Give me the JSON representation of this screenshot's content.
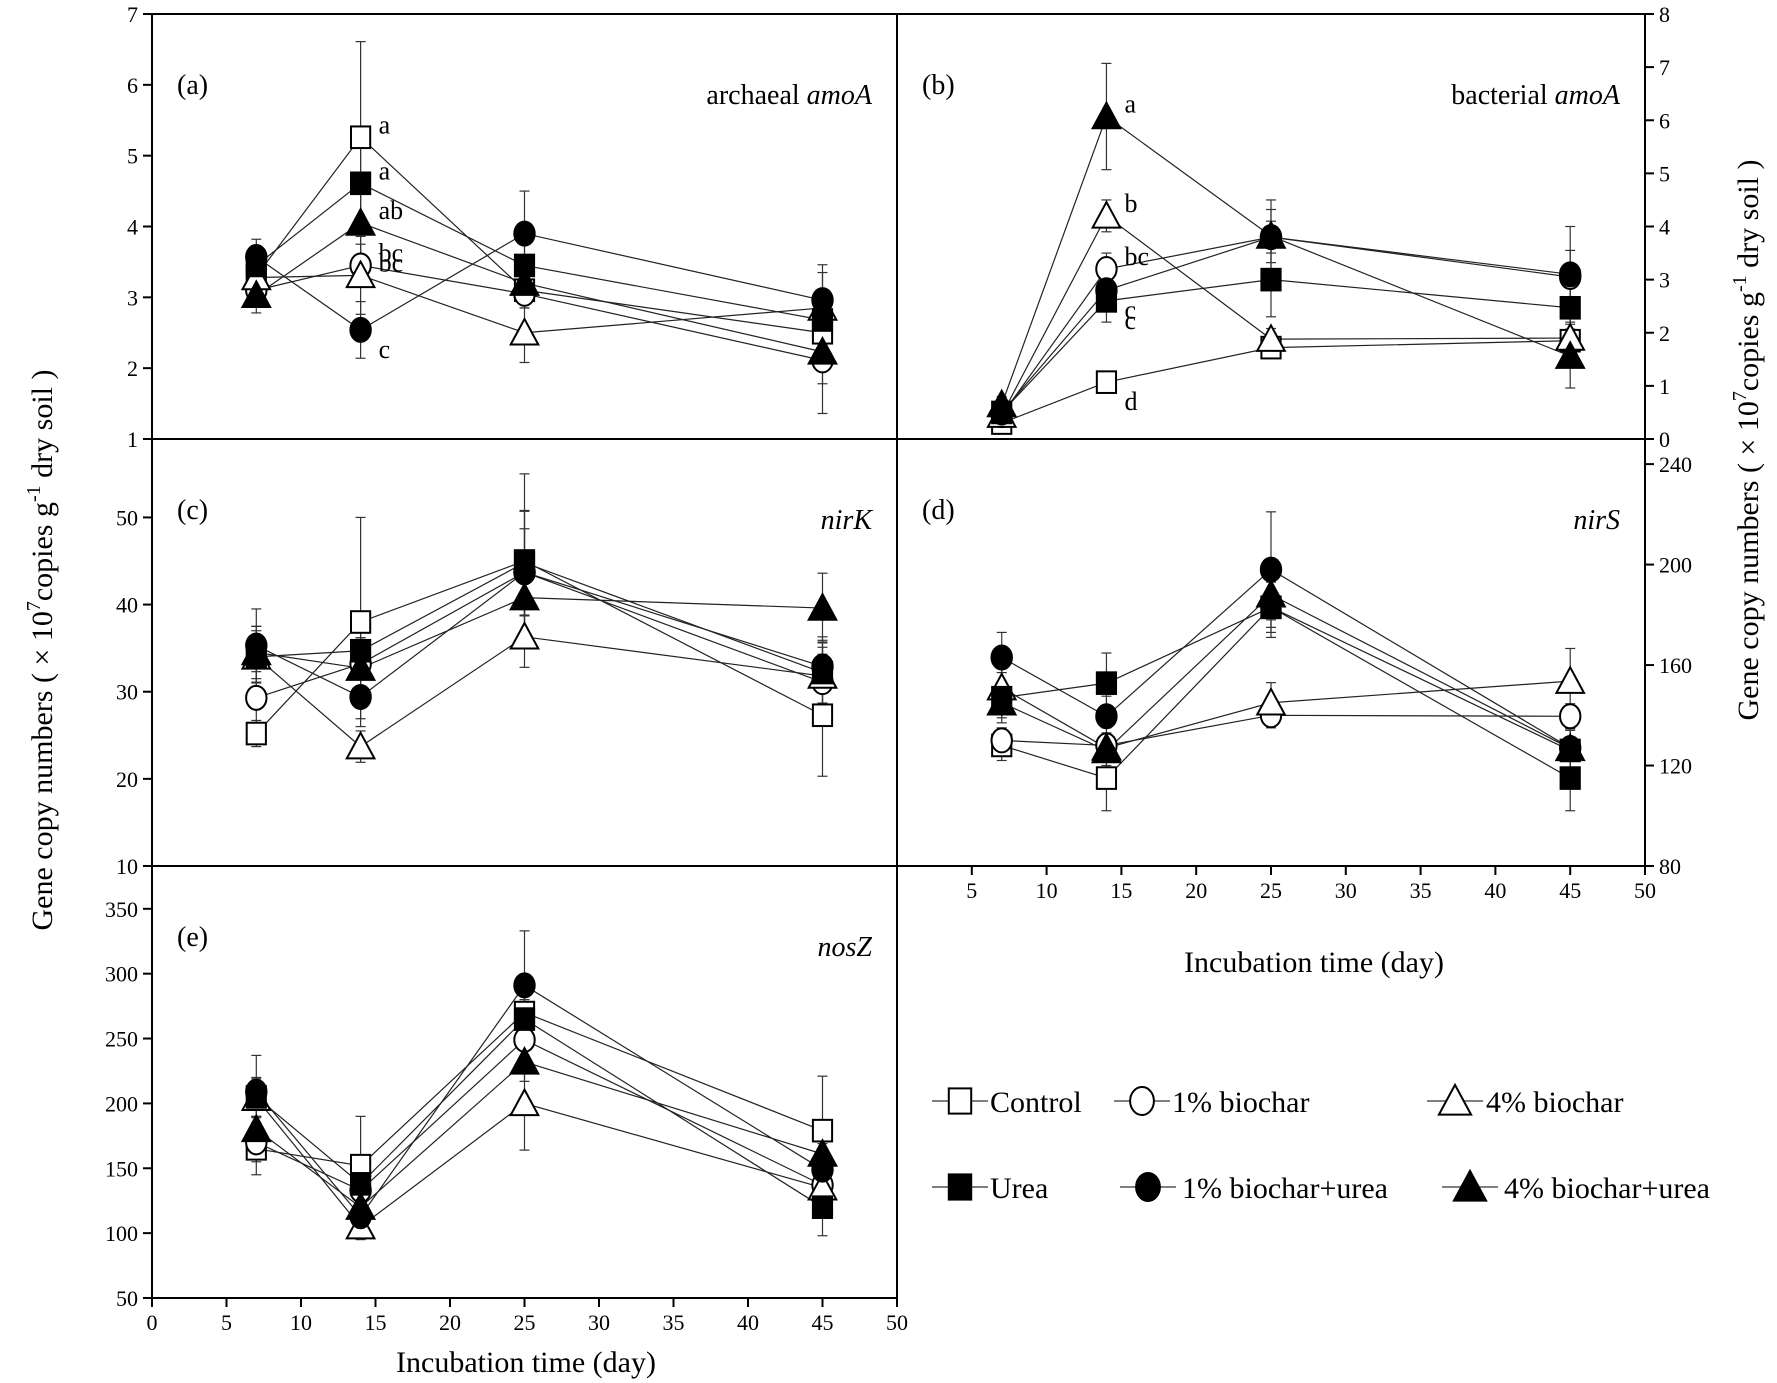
{
  "chart_data": {
    "type": "line",
    "y_axis_title": "Gene copy numbers ( × 10",
    "y_axis_title_sup1": "7",
    "y_axis_title_mid": "copies g",
    "y_axis_title_sup2": "-1",
    "y_axis_title_end": " dry soil )",
    "x_axis_title": "Incubation time (day)",
    "x": [
      7,
      14,
      25,
      45
    ],
    "xlim": [
      0,
      50
    ],
    "x_ticks_left": [
      0,
      5,
      10,
      15,
      20,
      25,
      30,
      35,
      40,
      45,
      50
    ],
    "x_ticks_right": [
      5,
      10,
      15,
      20,
      25,
      30,
      35,
      40,
      45,
      50
    ],
    "legend": [
      {
        "key": "control",
        "label": "Control",
        "marker": "square",
        "filled": false
      },
      {
        "key": "b1",
        "label": "1% biochar",
        "marker": "circle",
        "filled": false
      },
      {
        "key": "b4",
        "label": "4% biochar",
        "marker": "triangle",
        "filled": false
      },
      {
        "key": "urea",
        "label": "Urea",
        "marker": "square",
        "filled": true
      },
      {
        "key": "b1u",
        "label": "1% biochar+urea",
        "marker": "circle",
        "filled": true
      },
      {
        "key": "b4u",
        "label": "4% biochar+urea",
        "marker": "triangle",
        "filled": true
      }
    ],
    "panels": [
      {
        "id": "a",
        "tag": "(a)",
        "gene_prefix": "archaeal ",
        "gene_italic": "amoA",
        "ylim": [
          1,
          7
        ],
        "yticks": [
          1,
          2,
          3,
          4,
          5,
          6,
          7
        ],
        "axis_side": "left",
        "series": {
          "control": [
            3.3,
            5.26,
            3.1,
            2.5
          ],
          "b1": [
            3.1,
            3.45,
            3.05,
            2.11
          ],
          "b4": [
            3.28,
            3.31,
            2.5,
            2.85
          ],
          "urea": [
            3.45,
            4.61,
            3.45,
            2.68
          ],
          "b1u": [
            3.57,
            2.54,
            3.9,
            2.96
          ],
          "b4u": [
            3.03,
            4.05,
            3.2,
            2.23
          ]
        },
        "errors": {
          "control": [
            0.2,
            1.35,
            0.25,
            0.3
          ],
          "b1": [
            0.2,
            0.3,
            0.2,
            0.75
          ],
          "b4": [
            0.2,
            0.55,
            0.42,
            0.5
          ],
          "urea": [
            0.2,
            0.5,
            0.3,
            0.4
          ],
          "b1u": [
            0.25,
            0.4,
            0.6,
            0.5
          ],
          "b4u": [
            0.25,
            0.45,
            0.25,
            0.45
          ]
        },
        "sig_letters": [
          {
            "series": "control",
            "day": 14,
            "text": "a"
          },
          {
            "series": "urea",
            "day": 14,
            "text": "a"
          },
          {
            "series": "b4u",
            "day": 14,
            "text": "ab"
          },
          {
            "series": "b1",
            "day": 14,
            "text": "bc"
          },
          {
            "series": "b4",
            "day": 14,
            "text": "bc"
          },
          {
            "series": "b1u",
            "day": 14,
            "text": "c"
          }
        ]
      },
      {
        "id": "b",
        "tag": "(b)",
        "gene_prefix": "bacterial ",
        "gene_italic": "amoA",
        "ylim": [
          0,
          8
        ],
        "yticks": [
          0,
          1,
          2,
          3,
          4,
          5,
          6,
          7,
          8
        ],
        "axis_side": "right",
        "series": {
          "control": [
            0.3,
            1.07,
            1.72,
            1.85
          ],
          "b1": [
            0.45,
            3.2,
            3.8,
            3.05
          ],
          "b4": [
            0.45,
            4.2,
            1.88,
            1.9
          ],
          "urea": [
            0.5,
            2.6,
            3.0,
            2.47
          ],
          "b1u": [
            0.5,
            2.8,
            3.8,
            3.1
          ],
          "b4u": [
            0.65,
            6.07,
            3.82,
            1.56
          ]
        },
        "errors": {
          "control": [
            0.1,
            0.1,
            0.1,
            0.1
          ],
          "b1": [
            0.1,
            0.3,
            0.3,
            0.5
          ],
          "b4": [
            0.1,
            0.3,
            0.2,
            0.4
          ],
          "urea": [
            0.1,
            0.4,
            0.7,
            0.4
          ],
          "b1u": [
            0.1,
            0.4,
            0.7,
            0.9
          ],
          "b4u": [
            0.15,
            1.0,
            0.5,
            0.6
          ]
        },
        "sig_letters": [
          {
            "series": "b4u",
            "day": 14,
            "text": "a"
          },
          {
            "series": "b4",
            "day": 14,
            "text": "b"
          },
          {
            "series": "b1",
            "day": 14,
            "text": "bc"
          },
          {
            "series": "b1u",
            "day": 14,
            "text": "c"
          },
          {
            "series": "urea",
            "day": 14,
            "text": "c"
          },
          {
            "series": "control",
            "day": 14,
            "text": "d"
          }
        ]
      },
      {
        "id": "c",
        "tag": "(c)",
        "gene_prefix": "",
        "gene_italic": "nirK",
        "ylim": [
          10,
          59
        ],
        "yticks": [
          10,
          20,
          30,
          40,
          50
        ],
        "axis_side": "left",
        "series": {
          "control": [
            25.2,
            38.0,
            45.0,
            27.3
          ],
          "b1": [
            29.3,
            33.2,
            43.7,
            31.1
          ],
          "b4": [
            34.0,
            23.7,
            36.3,
            31.8
          ],
          "urea": [
            34.0,
            34.7,
            44.8,
            32.2
          ],
          "b1u": [
            35.3,
            29.4,
            43.7,
            32.9
          ],
          "b4u": [
            34.5,
            32.7,
            40.8,
            39.6
          ]
        },
        "errors": {
          "control": [
            1.5,
            12,
            10,
            7
          ],
          "b1": [
            3.0,
            3.0,
            5.0,
            4.0
          ],
          "b4": [
            3.5,
            1.8,
            3.5,
            4.5
          ],
          "urea": [
            3.0,
            2.5,
            6.0,
            3.5
          ],
          "b1u": [
            4.2,
            2.5,
            7.0,
            3.0
          ],
          "b4u": [
            3.0,
            3.5,
            4.0,
            4.0
          ]
        },
        "sig_letters": []
      },
      {
        "id": "d",
        "tag": "(d)",
        "gene_prefix": "",
        "gene_italic": "nirS",
        "ylim": [
          80,
          250
        ],
        "yticks": [
          80,
          120,
          160,
          200,
          240
        ],
        "axis_side": "right",
        "series": {
          "control": [
            128,
            115,
            183,
            126
          ],
          "b1": [
            130,
            128,
            140,
            139.6
          ],
          "b4": [
            151,
            127,
            145,
            153.6
          ],
          "urea": [
            147,
            152.8,
            183,
            115
          ],
          "b1u": [
            163,
            139.6,
            198,
            127
          ],
          "b4u": [
            145,
            126,
            188,
            126.8
          ]
        },
        "errors": {
          "control": [
            6,
            13,
            10,
            8
          ],
          "b1": [
            5,
            5,
            5,
            5
          ],
          "b4": [
            8,
            8,
            8,
            13
          ],
          "urea": [
            10,
            12,
            12,
            13
          ],
          "b1u": [
            10,
            8,
            23,
            10
          ],
          "b4u": [
            6,
            6,
            10,
            8
          ]
        },
        "sig_letters": []
      },
      {
        "id": "e",
        "tag": "(e)",
        "gene_prefix": "",
        "gene_italic": "nosZ",
        "ylim": [
          50,
          383
        ],
        "yticks": [
          50,
          100,
          150,
          200,
          250,
          300,
          350
        ],
        "axis_side": "left",
        "series": {
          "control": [
            165,
            152,
            270,
            179
          ],
          "b1": [
            170,
            133,
            249,
            137
          ],
          "b4": [
            204,
            105,
            200,
            135
          ],
          "urea": [
            205,
            138,
            265,
            120
          ],
          "b1u": [
            209,
            113,
            291,
            149
          ],
          "b4u": [
            180,
            120,
            232,
            161
          ]
        },
        "errors": {
          "control": [
            20,
            38,
            15,
            42
          ],
          "b1": [
            15,
            12,
            12,
            15
          ],
          "b4": [
            15,
            10,
            36,
            15
          ],
          "urea": [
            15,
            12,
            15,
            22
          ],
          "b1u": [
            28,
            12,
            42,
            20
          ],
          "b4u": [
            10,
            12,
            15,
            20
          ]
        },
        "sig_letters": []
      }
    ]
  }
}
